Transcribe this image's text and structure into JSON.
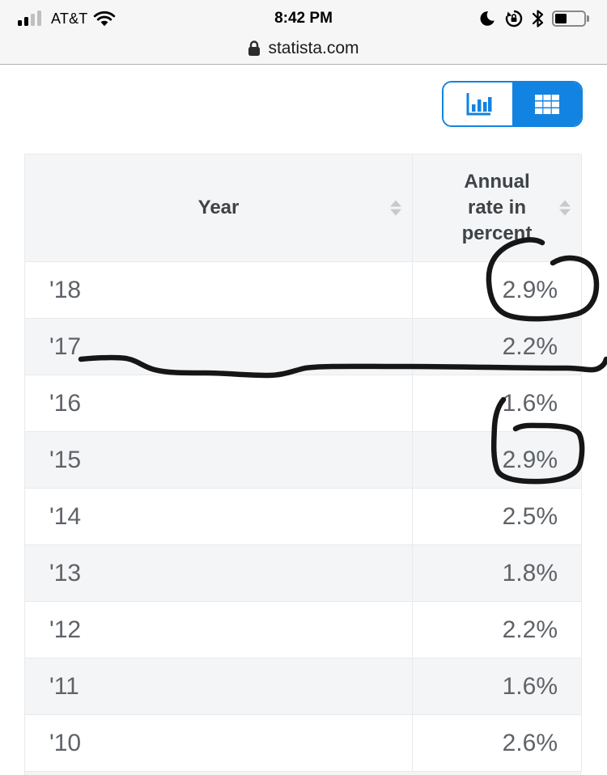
{
  "colors": {
    "accent_blue": "#1283e0",
    "annotation_ink": "#161616",
    "stripe_gray": "#f4f5f6",
    "border_gray": "#e7e9eb"
  },
  "status_bar": {
    "carrier": "AT&T",
    "time": "8:42 PM",
    "battery_percent": 42,
    "icons": [
      "cell-signal",
      "wifi",
      "moon-dnd",
      "orientation-lock",
      "bluetooth",
      "battery"
    ]
  },
  "url_bar": {
    "domain": "statista.com",
    "lock_icon": "padlock-icon"
  },
  "view_toggle": {
    "options": [
      {
        "name": "chart-view",
        "icon": "bar-chart-icon",
        "selected": false
      },
      {
        "name": "table-view",
        "icon": "table-grid-icon",
        "selected": true
      }
    ]
  },
  "table": {
    "columns": [
      {
        "label": "Year",
        "sortable": true
      },
      {
        "label": "Annual rate in percent",
        "sortable": true
      }
    ],
    "rows": [
      {
        "year": "'18",
        "rate": "2.9%"
      },
      {
        "year": "'17",
        "rate": "2.2%"
      },
      {
        "year": "'16",
        "rate": "1.6%"
      },
      {
        "year": "'15",
        "rate": "2.9%"
      },
      {
        "year": "'14",
        "rate": "2.5%"
      },
      {
        "year": "'13",
        "rate": "1.8%"
      },
      {
        "year": "'12",
        "rate": "2.2%"
      },
      {
        "year": "'11",
        "rate": "1.6%"
      },
      {
        "year": "'10",
        "rate": "2.6%"
      }
    ]
  },
  "annotations": {
    "tool": "hand-drawn-marker",
    "items": [
      "circle-around-2018-rate",
      "line-under-2017-row",
      "circle-around-2015-rate"
    ]
  }
}
